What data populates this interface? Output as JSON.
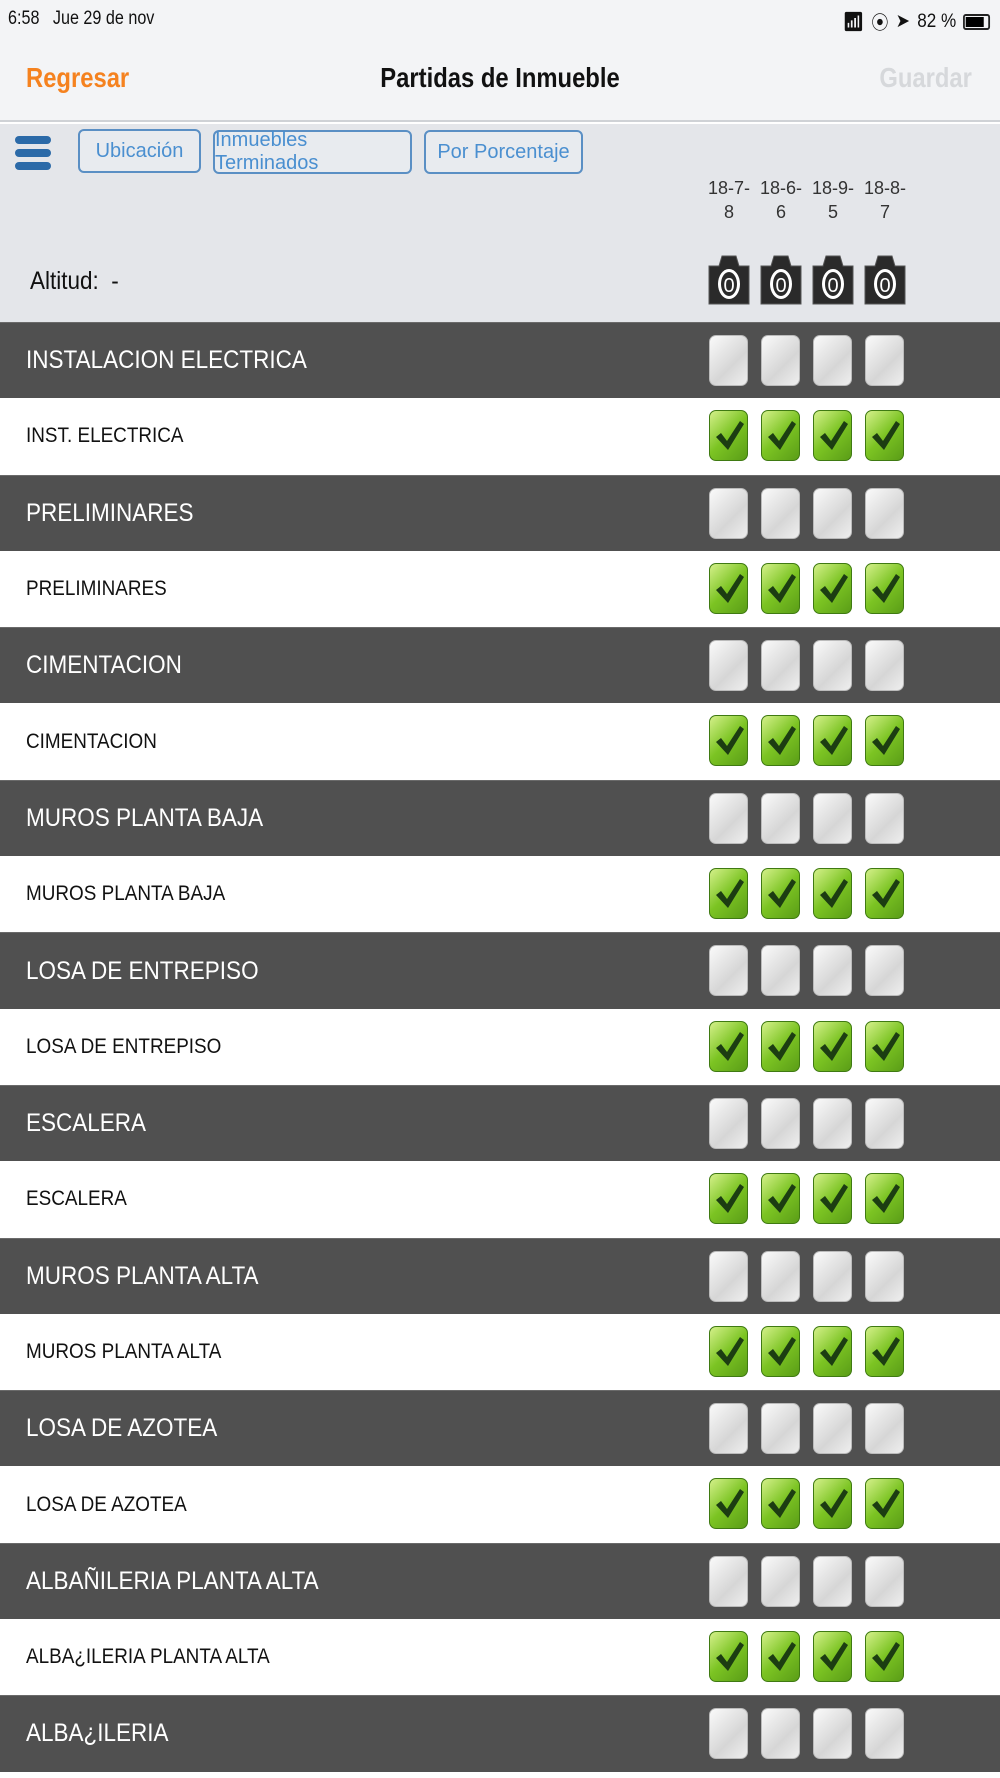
{
  "status_bar": {
    "time": "6:58",
    "date": "Jue 29 de nov",
    "battery": "82 %",
    "battery_level": 82
  },
  "nav": {
    "back": "Regresar",
    "title": "Partidas de Inmueble",
    "save": "Guardar"
  },
  "toolbar": {
    "buttons": [
      "Ubicación",
      "Inmuebles Terminados",
      "Por Porcentaje"
    ],
    "altitude_label": "Altitud:",
    "altitude_value": "-"
  },
  "columns": [
    {
      "line1": "18-7-",
      "line2": "8",
      "photos": "0"
    },
    {
      "line1": "18-6-",
      "line2": "6",
      "photos": "0"
    },
    {
      "line1": "18-9-",
      "line2": "5",
      "photos": "0"
    },
    {
      "line1": "18-8-",
      "line2": "7",
      "photos": "0"
    }
  ],
  "rows": [
    {
      "label": "INSTALACION ELECTRICA",
      "type": "group",
      "checked": [
        false,
        false,
        false,
        false
      ]
    },
    {
      "label": "INST. ELECTRICA",
      "type": "item",
      "checked": [
        true,
        true,
        true,
        true
      ]
    },
    {
      "label": "PRELIMINARES",
      "type": "group",
      "checked": [
        false,
        false,
        false,
        false
      ]
    },
    {
      "label": "PRELIMINARES",
      "type": "item",
      "checked": [
        true,
        true,
        true,
        true
      ]
    },
    {
      "label": "CIMENTACION",
      "type": "group",
      "checked": [
        false,
        false,
        false,
        false
      ]
    },
    {
      "label": "CIMENTACION",
      "type": "item",
      "checked": [
        true,
        true,
        true,
        true
      ]
    },
    {
      "label": "MUROS PLANTA BAJA",
      "type": "group",
      "checked": [
        false,
        false,
        false,
        false
      ]
    },
    {
      "label": "MUROS PLANTA BAJA",
      "type": "item",
      "checked": [
        true,
        true,
        true,
        true
      ]
    },
    {
      "label": "LOSA DE ENTREPISO",
      "type": "group",
      "checked": [
        false,
        false,
        false,
        false
      ]
    },
    {
      "label": "LOSA DE ENTREPISO",
      "type": "item",
      "checked": [
        true,
        true,
        true,
        true
      ]
    },
    {
      "label": "ESCALERA",
      "type": "group",
      "checked": [
        false,
        false,
        false,
        false
      ]
    },
    {
      "label": "ESCALERA",
      "type": "item",
      "checked": [
        true,
        true,
        true,
        true
      ]
    },
    {
      "label": "MUROS PLANTA ALTA",
      "type": "group",
      "checked": [
        false,
        false,
        false,
        false
      ]
    },
    {
      "label": "MUROS PLANTA ALTA",
      "type": "item",
      "checked": [
        true,
        true,
        true,
        true
      ]
    },
    {
      "label": "LOSA DE AZOTEA",
      "type": "group",
      "checked": [
        false,
        false,
        false,
        false
      ]
    },
    {
      "label": "LOSA DE AZOTEA",
      "type": "item",
      "checked": [
        true,
        true,
        true,
        true
      ]
    },
    {
      "label": "ALBAÑILERIA PLANTA ALTA",
      "type": "group",
      "checked": [
        false,
        false,
        false,
        false
      ]
    },
    {
      "label": "ALBA¿ILERIA PLANTA ALTA",
      "type": "item",
      "checked": [
        true,
        true,
        true,
        true
      ]
    },
    {
      "label": "ALBA¿ILERIA",
      "type": "group",
      "checked": [
        false,
        false,
        false,
        false
      ]
    }
  ],
  "colors": {
    "accent": "#f5821f",
    "button_blue": "#4a8fd0",
    "group_row": "#505050",
    "check_green": "#7cc423"
  }
}
